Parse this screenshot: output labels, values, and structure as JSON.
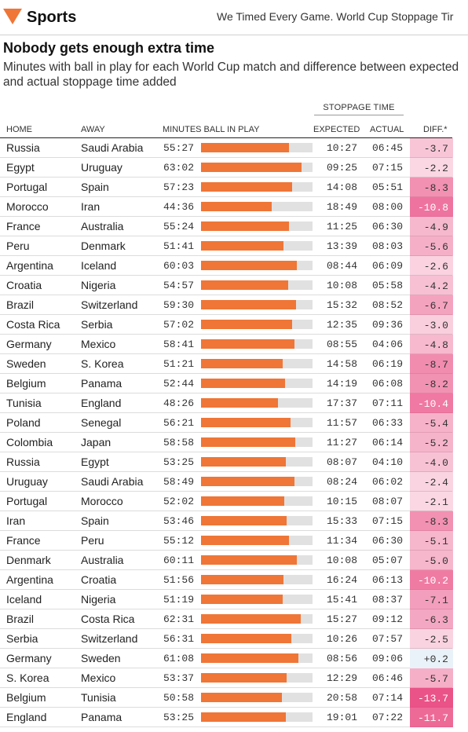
{
  "nav": {
    "section": "Sports",
    "top_story": "We Timed Every Game. World Cup Stoppage Tir"
  },
  "article": {
    "headline": "Nobody gets enough extra time",
    "dek": "Minutes with ball in play for each World Cup match and difference between expected and actual stoppage time added"
  },
  "table": {
    "group_header": "STOPPAGE TIME",
    "columns": {
      "home": "HOME",
      "away": "AWAY",
      "minutes": "MINUTES BALL IN PLAY",
      "expected": "EXPECTED",
      "actual": "ACTUAL",
      "diff": "DIFF.*"
    },
    "bar_color": "#ef7637",
    "positive_diff_color": "#e9f2f8",
    "negative_diff_color": "#e8407a",
    "rows": [
      {
        "home": "Russia",
        "away": "Saudi Arabia",
        "minutes": "55:27",
        "expected": "10:27",
        "actual": "06:45",
        "diff": "-3.7"
      },
      {
        "home": "Egypt",
        "away": "Uruguay",
        "minutes": "63:02",
        "expected": "09:25",
        "actual": "07:15",
        "diff": "-2.2"
      },
      {
        "home": "Portugal",
        "away": "Spain",
        "minutes": "57:23",
        "expected": "14:08",
        "actual": "05:51",
        "diff": "-8.3"
      },
      {
        "home": "Morocco",
        "away": "Iran",
        "minutes": "44:36",
        "expected": "18:49",
        "actual": "08:00",
        "diff": "-10.8"
      },
      {
        "home": "France",
        "away": "Australia",
        "minutes": "55:24",
        "expected": "11:25",
        "actual": "06:30",
        "diff": "-4.9"
      },
      {
        "home": "Peru",
        "away": "Denmark",
        "minutes": "51:41",
        "expected": "13:39",
        "actual": "08:03",
        "diff": "-5.6"
      },
      {
        "home": "Argentina",
        "away": "Iceland",
        "minutes": "60:03",
        "expected": "08:44",
        "actual": "06:09",
        "diff": "-2.6"
      },
      {
        "home": "Croatia",
        "away": "Nigeria",
        "minutes": "54:57",
        "expected": "10:08",
        "actual": "05:58",
        "diff": "-4.2"
      },
      {
        "home": "Brazil",
        "away": "Switzerland",
        "minutes": "59:30",
        "expected": "15:32",
        "actual": "08:52",
        "diff": "-6.7"
      },
      {
        "home": "Costa Rica",
        "away": "Serbia",
        "minutes": "57:02",
        "expected": "12:35",
        "actual": "09:36",
        "diff": "-3.0"
      },
      {
        "home": "Germany",
        "away": "Mexico",
        "minutes": "58:41",
        "expected": "08:55",
        "actual": "04:06",
        "diff": "-4.8"
      },
      {
        "home": "Sweden",
        "away": "S. Korea",
        "minutes": "51:21",
        "expected": "14:58",
        "actual": "06:19",
        "diff": "-8.7"
      },
      {
        "home": "Belgium",
        "away": "Panama",
        "minutes": "52:44",
        "expected": "14:19",
        "actual": "06:08",
        "diff": "-8.2"
      },
      {
        "home": "Tunisia",
        "away": "England",
        "minutes": "48:26",
        "expected": "17:37",
        "actual": "07:11",
        "diff": "-10.4"
      },
      {
        "home": "Poland",
        "away": "Senegal",
        "minutes": "56:21",
        "expected": "11:57",
        "actual": "06:33",
        "diff": "-5.4"
      },
      {
        "home": "Colombia",
        "away": "Japan",
        "minutes": "58:58",
        "expected": "11:27",
        "actual": "06:14",
        "diff": "-5.2"
      },
      {
        "home": "Russia",
        "away": "Egypt",
        "minutes": "53:25",
        "expected": "08:07",
        "actual": "04:10",
        "diff": "-4.0"
      },
      {
        "home": "Uruguay",
        "away": "Saudi Arabia",
        "minutes": "58:49",
        "expected": "08:24",
        "actual": "06:02",
        "diff": "-2.4"
      },
      {
        "home": "Portugal",
        "away": "Morocco",
        "minutes": "52:02",
        "expected": "10:15",
        "actual": "08:07",
        "diff": "-2.1"
      },
      {
        "home": "Iran",
        "away": "Spain",
        "minutes": "53:46",
        "expected": "15:33",
        "actual": "07:15",
        "diff": "-8.3"
      },
      {
        "home": "France",
        "away": "Peru",
        "minutes": "55:12",
        "expected": "11:34",
        "actual": "06:30",
        "diff": "-5.1"
      },
      {
        "home": "Denmark",
        "away": "Australia",
        "minutes": "60:11",
        "expected": "10:08",
        "actual": "05:07",
        "diff": "-5.0"
      },
      {
        "home": "Argentina",
        "away": "Croatia",
        "minutes": "51:56",
        "expected": "16:24",
        "actual": "06:13",
        "diff": "-10.2"
      },
      {
        "home": "Iceland",
        "away": "Nigeria",
        "minutes": "51:19",
        "expected": "15:41",
        "actual": "08:37",
        "diff": "-7.1"
      },
      {
        "home": "Brazil",
        "away": "Costa Rica",
        "minutes": "62:31",
        "expected": "15:27",
        "actual": "09:12",
        "diff": "-6.3"
      },
      {
        "home": "Serbia",
        "away": "Switzerland",
        "minutes": "56:31",
        "expected": "10:26",
        "actual": "07:57",
        "diff": "-2.5"
      },
      {
        "home": "Germany",
        "away": "Sweden",
        "minutes": "61:08",
        "expected": "08:56",
        "actual": "09:06",
        "diff": "+0.2"
      },
      {
        "home": "S. Korea",
        "away": "Mexico",
        "minutes": "53:37",
        "expected": "12:29",
        "actual": "06:46",
        "diff": "-5.7"
      },
      {
        "home": "Belgium",
        "away": "Tunisia",
        "minutes": "50:58",
        "expected": "20:58",
        "actual": "07:14",
        "diff": "-13.7"
      },
      {
        "home": "England",
        "away": "Panama",
        "minutes": "53:25",
        "expected": "19:01",
        "actual": "07:22",
        "diff": "-11.7"
      }
    ]
  }
}
